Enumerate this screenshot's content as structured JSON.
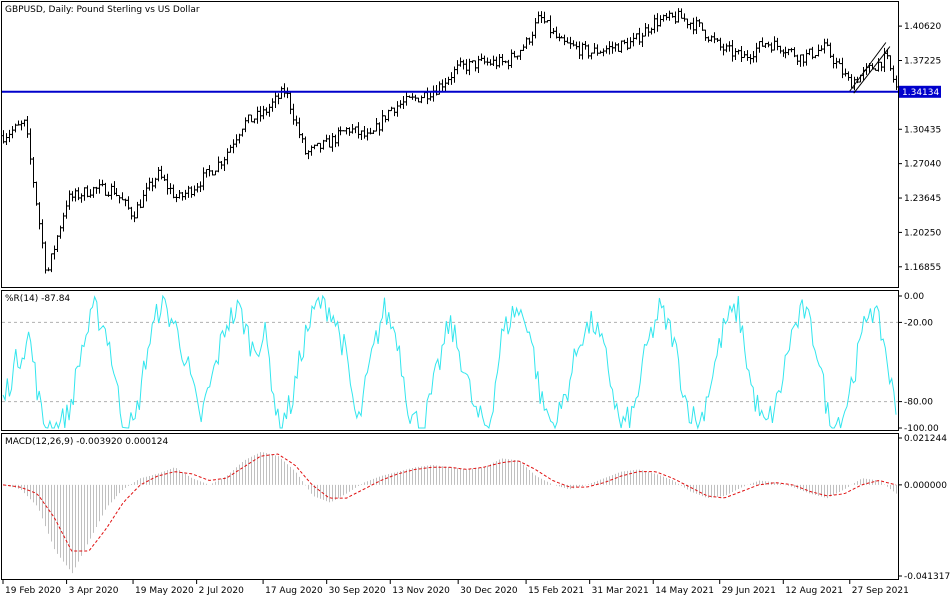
{
  "header": {
    "symbol_title": "GBPUSD, Daily:  Pound Sterling vs US Dollar",
    "wpr_title": "%R(14) -87.84",
    "macd_title": "MACD(12,26,9) -0.003920 0.000124"
  },
  "price_axis": {
    "ticks": [
      "1.40620",
      "1.37225",
      "1.30435",
      "1.27040",
      "1.23645",
      "1.20250",
      "1.16855"
    ],
    "current_price_label": "1.34134"
  },
  "wpr_axis": {
    "ticks": [
      "0.00",
      "-20.00",
      "-80.00",
      "-100.00"
    ]
  },
  "macd_axis": {
    "ticks": [
      "0.021244",
      "0.000000",
      "-0.041317"
    ]
  },
  "time_axis": {
    "labels": [
      "19 Feb 2020",
      "3 Apr 2020",
      "19 May 2020",
      "2 Jul 2020",
      "17 Aug 2020",
      "30 Sep 2020",
      "13 Nov 2020",
      "30 Dec 2020",
      "15 Feb 2021",
      "31 Mar 2021",
      "14 May 2021",
      "29 Jun 2021",
      "12 Aug 2021",
      "27 Sep 2021"
    ]
  },
  "colors": {
    "bars": "#000000",
    "hline": "#0000cc",
    "wpr_line": "#33e6ee",
    "level_lines": "#b0b0b0",
    "macd_hist": "#c0c0c0",
    "macd_signal": "#e01010",
    "price_label_bg": "#0000cc"
  },
  "chart_data": [
    {
      "type": "ohlc",
      "symbol": "GBPUSD",
      "timeframe": "Daily",
      "ylim": [
        1.1486,
        1.43
      ],
      "horizontal_line": 1.34134,
      "points": [
        [
          "19 Feb 2020",
          1.298
        ],
        [
          "5 Mar 2020",
          1.31
        ],
        [
          "20 Mar 2020",
          1.16
        ],
        [
          "3 Apr 2020",
          1.235
        ],
        [
          "20 Apr 2020",
          1.245
        ],
        [
          "5 May 2020",
          1.245
        ],
        [
          "19 May 2020",
          1.22
        ],
        [
          "5 Jun 2020",
          1.26
        ],
        [
          "19 Jun 2020",
          1.235
        ],
        [
          "2 Jul 2020",
          1.25
        ],
        [
          "20 Jul 2020",
          1.275
        ],
        [
          "3 Aug 2020",
          1.31
        ],
        [
          "17 Aug 2020",
          1.32
        ],
        [
          "1 Sep 2020",
          1.343
        ],
        [
          "15 Sep 2020",
          1.28
        ],
        [
          "30 Sep 2020",
          1.29
        ],
        [
          "15 Oct 2020",
          1.305
        ],
        [
          "30 Oct 2020",
          1.295
        ],
        [
          "13 Nov 2020",
          1.325
        ],
        [
          "1 Dec 2020",
          1.335
        ],
        [
          "15 Dec 2020",
          1.345
        ],
        [
          "30 Dec 2020",
          1.365
        ],
        [
          "15 Jan 2021",
          1.37
        ],
        [
          "1 Feb 2021",
          1.37
        ],
        [
          "15 Feb 2021",
          1.39
        ],
        [
          "24 Feb 2021",
          1.415
        ],
        [
          "10 Mar 2021",
          1.39
        ],
        [
          "31 Mar 2021",
          1.38
        ],
        [
          "15 Apr 2021",
          1.385
        ],
        [
          "30 Apr 2021",
          1.39
        ],
        [
          "14 May 2021",
          1.41
        ],
        [
          "1 Jun 2021",
          1.415
        ],
        [
          "15 Jun 2021",
          1.405
        ],
        [
          "29 Jun 2021",
          1.385
        ],
        [
          "15 Jul 2021",
          1.375
        ],
        [
          "30 Jul 2021",
          1.39
        ],
        [
          "12 Aug 2021",
          1.385
        ],
        [
          "25 Aug 2021",
          1.375
        ],
        [
          "10 Sep 2021",
          1.385
        ],
        [
          "27 Sep 2021",
          1.35
        ],
        [
          "12 Oct 2021",
          1.365
        ],
        [
          "22 Oct 2021",
          1.375
        ],
        [
          "29 Oct 2021",
          1.345
        ]
      ]
    },
    {
      "type": "line",
      "name": "%R(14)",
      "ylim": [
        -100,
        0
      ],
      "levels": [
        -20,
        -80
      ],
      "x_range": [
        "19 Feb 2020",
        "29 Oct 2021"
      ],
      "values": [
        -80,
        -50,
        -30,
        -95,
        -100,
        -90,
        -40,
        -10,
        -30,
        -90,
        -100,
        -40,
        -5,
        -20,
        -50,
        -95,
        -60,
        -20,
        -10,
        -40,
        -30,
        -100,
        -80,
        -30,
        -5,
        -10,
        -40,
        -100,
        -50,
        -10,
        -30,
        -90,
        -100,
        -60,
        -20,
        -50,
        -90,
        -100,
        -30,
        -10,
        -20,
        -80,
        -100,
        -70,
        -30,
        -20,
        -50,
        -100,
        -90,
        -40,
        -10,
        -30,
        -80,
        -100,
        -60,
        -20,
        -10,
        -70,
        -100,
        -80,
        -30,
        -10,
        -40,
        -100,
        -90,
        -50,
        -5,
        -30,
        -88
      ]
    },
    {
      "type": "bar+line",
      "name": "MACD(12,26,9)",
      "ylim": [
        -0.041317,
        0.021244
      ],
      "x_range": [
        "19 Feb 2020",
        "29 Oct 2021"
      ],
      "histogram": [
        0.0,
        -0.002,
        -0.01,
        -0.03,
        -0.04,
        -0.025,
        -0.01,
        -0.002,
        0.003,
        0.005,
        0.008,
        0.003,
        0.0,
        0.004,
        0.011,
        0.015,
        0.013,
        0.006,
        -0.005,
        -0.008,
        -0.004,
        0.001,
        0.004,
        0.006,
        0.008,
        0.009,
        0.008,
        0.007,
        0.008,
        0.012,
        0.011,
        0.004,
        0.0,
        -0.002,
        0.0,
        0.003,
        0.006,
        0.007,
        0.005,
        0.002,
        -0.003,
        -0.006,
        -0.005,
        -0.001,
        0.002,
        0.001,
        -0.001,
        -0.004,
        -0.006,
        -0.002,
        0.003,
        0.002,
        -0.004
      ],
      "signal": [
        0.0,
        -0.001,
        -0.004,
        -0.015,
        -0.03,
        -0.03,
        -0.02,
        -0.008,
        0.0,
        0.004,
        0.006,
        0.005,
        0.002,
        0.003,
        0.008,
        0.013,
        0.014,
        0.009,
        0.0,
        -0.006,
        -0.006,
        -0.002,
        0.002,
        0.005,
        0.007,
        0.008,
        0.008,
        0.007,
        0.008,
        0.01,
        0.011,
        0.007,
        0.002,
        -0.001,
        -0.001,
        0.001,
        0.004,
        0.006,
        0.006,
        0.003,
        -0.001,
        -0.005,
        -0.006,
        -0.003,
        0.0,
        0.001,
        0.0,
        -0.003,
        -0.005,
        -0.004,
        0.0,
        0.002,
        0.0
      ]
    }
  ]
}
